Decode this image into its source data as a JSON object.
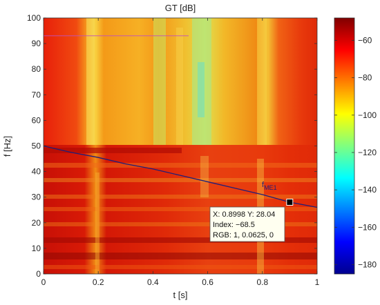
{
  "chart_data": {
    "type": "heatmap",
    "title": "GT [dB]",
    "xlabel": "t [s]",
    "ylabel": "f [Hz]",
    "xlim": [
      0,
      1
    ],
    "ylim": [
      0,
      100
    ],
    "xticks": [
      0,
      0.2,
      0.4,
      0.6,
      0.8,
      1
    ],
    "xtick_labels": [
      "0",
      "0.2",
      "0.4",
      "0.6",
      "0.8",
      "1"
    ],
    "yticks": [
      0,
      10,
      20,
      30,
      40,
      50,
      60,
      70,
      80,
      90,
      100
    ],
    "ytick_labels": [
      "0",
      "10",
      "20",
      "30",
      "40",
      "50",
      "60",
      "70",
      "80",
      "90",
      "100"
    ],
    "colorbar": {
      "range": [
        -185,
        -48
      ],
      "ticks": [
        -60,
        -80,
        -100,
        -120,
        -140,
        -160,
        -180
      ],
      "tick_labels": [
        "−60",
        "−80",
        "−100",
        "−120",
        "−140",
        "−160",
        "−180"
      ],
      "colormap": "jet"
    },
    "series": [
      {
        "name": "f",
        "name_sub": "ME1",
        "x": [
          0,
          0.1,
          0.2,
          0.3,
          0.4,
          0.5,
          0.6,
          0.7,
          0.8,
          0.9,
          1.0
        ],
        "y": [
          50,
          47.5,
          45.5,
          43,
          41,
          38.5,
          36,
          33.5,
          31,
          28.04,
          26
        ]
      }
    ],
    "datatip": {
      "x": 0.8998,
      "y": 28.04,
      "line1": "X: 0.8998 Y: 28.04",
      "line2": "Index: −68.5",
      "line3": "RGB: 1, 0.0625, 0"
    },
    "line_color": "#1f1f7a"
  }
}
